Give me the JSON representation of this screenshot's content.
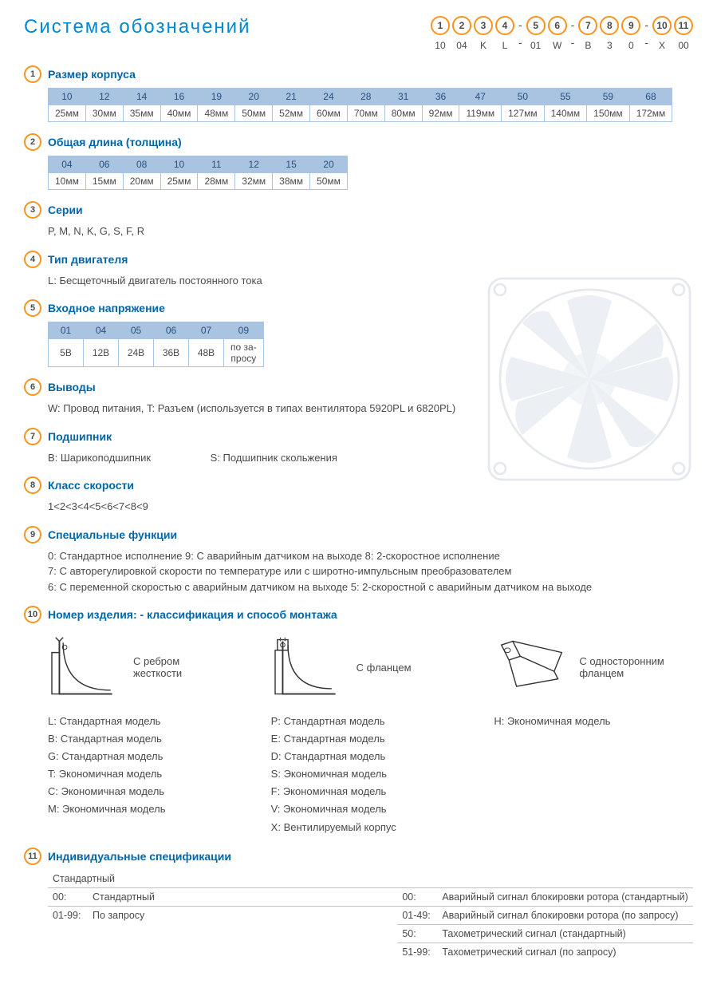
{
  "title": "Система обозначений",
  "colors": {
    "title": "#0088d4",
    "section_title": "#0066aa",
    "badge_border": "#f7931e",
    "table_header_bg": "#a8c4e0",
    "table_border": "#a8c4e0",
    "text": "#4a4a4a",
    "divider": "#c0c0c0"
  },
  "header_badges": [
    {
      "num": "1",
      "val": "10"
    },
    {
      "num": "2",
      "val": "04"
    },
    {
      "num": "3",
      "val": "K"
    },
    {
      "num": "4",
      "val": "L"
    },
    {
      "dash": true
    },
    {
      "num": "5",
      "val": "01"
    },
    {
      "num": "6",
      "val": "W"
    },
    {
      "dash": true
    },
    {
      "num": "7",
      "val": "B"
    },
    {
      "num": "8",
      "val": "3"
    },
    {
      "num": "9",
      "val": "0"
    },
    {
      "dash": true
    },
    {
      "num": "10",
      "val": "X"
    },
    {
      "num": "11",
      "val": "00"
    }
  ],
  "s1": {
    "num": "1",
    "title": "Размер корпуса",
    "codes": [
      "10",
      "12",
      "14",
      "16",
      "19",
      "20",
      "21",
      "24",
      "28",
      "31",
      "36",
      "47",
      "50",
      "55",
      "59",
      "68"
    ],
    "vals": [
      "25мм",
      "30мм",
      "35мм",
      "40мм",
      "48мм",
      "50мм",
      "52мм",
      "60мм",
      "70мм",
      "80мм",
      "92мм",
      "119мм",
      "127мм",
      "140мм",
      "150мм",
      "172мм"
    ]
  },
  "s2": {
    "num": "2",
    "title": "Общая длина (толщина)",
    "codes": [
      "04",
      "06",
      "08",
      "10",
      "11",
      "12",
      "15",
      "20"
    ],
    "vals": [
      "10мм",
      "15мм",
      "20мм",
      "25мм",
      "28мм",
      "32мм",
      "38мм",
      "50мм"
    ]
  },
  "s3": {
    "num": "3",
    "title": "Серии",
    "text": "P, M, N, K, G, S, F, R"
  },
  "s4": {
    "num": "4",
    "title": "Тип двигателя",
    "text": "L: Бесщеточный двигатель постоянного тока"
  },
  "s5": {
    "num": "5",
    "title": "Входное напряжение",
    "codes": [
      "01",
      "04",
      "05",
      "06",
      "07",
      "09"
    ],
    "vals": [
      "5В",
      "12В",
      "24В",
      "36В",
      "48В",
      "по за-\nпросу"
    ]
  },
  "s6": {
    "num": "6",
    "title": "Выводы",
    "text": "W: Провод питания, T: Разъем (используется в типах вентилятора  5920PL и 6820PL)"
  },
  "s7": {
    "num": "7",
    "title": "Подшипник",
    "text_b": "B: Шарикоподшипник",
    "text_s": "S: Подшипник скольжения"
  },
  "s8": {
    "num": "8",
    "title": "Класс скорости",
    "text": "1<2<3<4<5<6<7<8<9"
  },
  "s9": {
    "num": "9",
    "title": "Специальные функции",
    "line1": "0: Стандартное исполнение   9: С аварийным датчиком на выходе   8: 2-скоростное исполнение",
    "line2": "7: С авторегулировкой скорости по температуре или с широтно-импульсным преобразователем",
    "line3": "6: С переменной скоростью с аварийным датчиком на выходе   5: 2-скоростной с аварийным датчиком на выходе"
  },
  "s10": {
    "num": "10",
    "title": "Номер изделия: - классификация  и способ монтажа",
    "mount1": "С ребром жесткости",
    "mount2": "С фланцем",
    "mount3": "С односторонним фланцем",
    "col1": [
      "L:  Стандартная модель",
      "B:  Стандартная модель",
      "G:  Стандартная модель",
      "T:  Экономичная модель",
      "C:  Экономичная модель",
      "M:  Экономичная модель"
    ],
    "col2": [
      "P:  Стандартная модель",
      "E:  Стандартная модель",
      "D:  Стандартная модель",
      "S:  Экономичная модель",
      "F:  Экономичная модель",
      "V:  Экономичная модель",
      "X:  Вентилируемый корпус"
    ],
    "col3": [
      "H:  Экономичная модель"
    ]
  },
  "s11": {
    "num": "11",
    "title": "Индивидуальные спецификации",
    "left_head": "Стандартный",
    "left": [
      {
        "code": "00:",
        "text": "Стандартный"
      },
      {
        "code": "01-99:",
        "text": "По запросу"
      }
    ],
    "right": [
      {
        "code": "00:",
        "text": "Аварийный сигнал блокировки ротора (стандартный)"
      },
      {
        "code": "01-49:",
        "text": "Аварийный сигнал блокировки ротора (по запросу)"
      },
      {
        "code": "50:",
        "text": "Тахометрический сигнал (стандартный)"
      },
      {
        "code": "51-99:",
        "text": "Тахометрический сигнал (по запросу)"
      }
    ]
  }
}
